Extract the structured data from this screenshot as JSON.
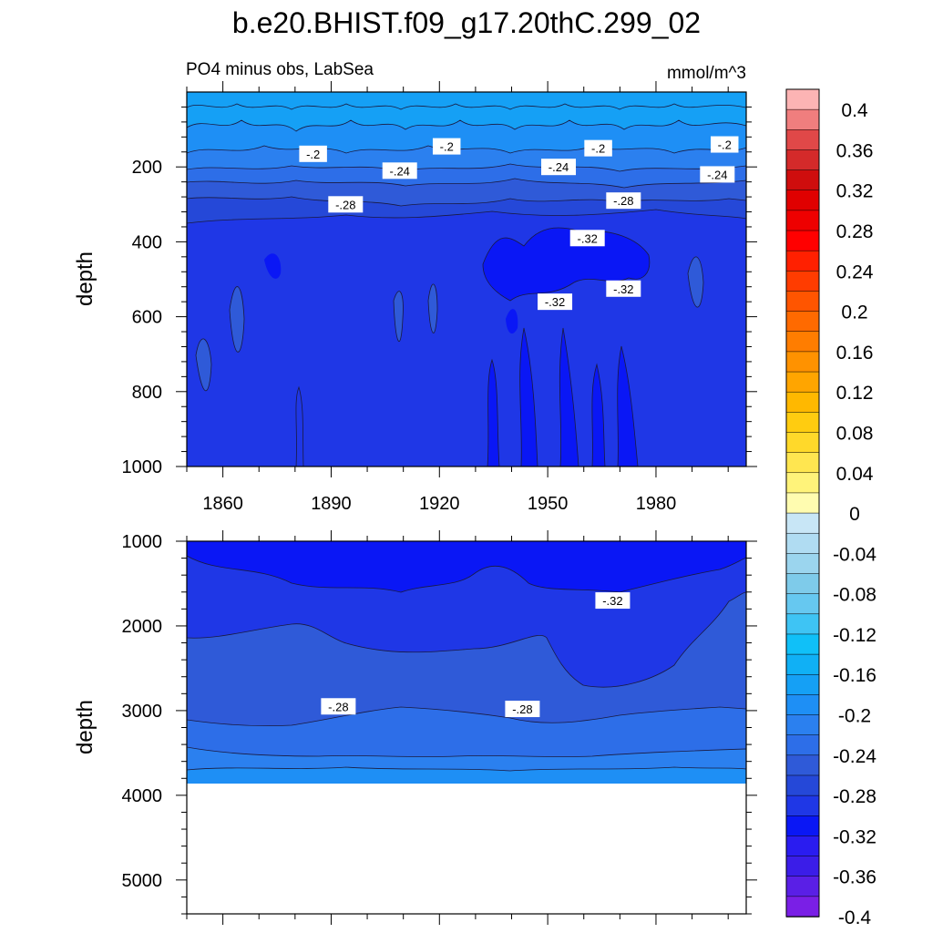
{
  "figure": {
    "title": "b.e20.BHIST.f09_g17.20thC.299_02",
    "subtitle_left": "PO4 minus obs, LabSea",
    "subtitle_right": "mmol/m^3"
  },
  "colors": {
    "c_m040": "#7a1fe6",
    "c_m038": "#5a1fe6",
    "c_m036": "#3b1de8",
    "c_m034": "#2a1cf0",
    "c_m032": "#0a17f5",
    "c_m030": "#1f37e6",
    "c_m028": "#2548d8",
    "c_m026": "#2f5ad8",
    "c_m024": "#2d6ee8",
    "c_m022": "#2b80ef",
    "c_m020": "#1e8ff5",
    "c_m018": "#15a0f5",
    "c_m016": "#10b0f5",
    "c_m014": "#10c0f8",
    "c_m012": "#3ec4f4",
    "c_m010": "#66c8f0",
    "c_m008": "#7ecbea",
    "c_m006": "#9bd5ee",
    "c_m004": "#b0dcf2",
    "c_m002": "#c8e6f6",
    "c_p002": "#fffcb0",
    "c_p004": "#fff37a",
    "c_p006": "#ffe650",
    "c_p008": "#ffd92a",
    "c_p010": "#ffcc10",
    "c_p012": "#ffb800",
    "c_p014": "#ffa500",
    "c_p016": "#ff9200",
    "c_p018": "#ff7d00",
    "c_p020": "#ff6a00",
    "c_p022": "#ff5500",
    "c_p024": "#ff3c00",
    "c_p026": "#ff2000",
    "c_p028": "#ff0000",
    "c_p030": "#ee0000",
    "c_p032": "#e00000",
    "c_p034": "#cf0d0d",
    "c_p036": "#d42a2a",
    "c_p038": "#e04848",
    "c_p040": "#f07e7e",
    "c_p042": "#fcb4b4",
    "line": "#1a1a40"
  },
  "chart_data": [
    {
      "type": "heatmap",
      "title": "",
      "xlabel": "",
      "ylabel": "depth",
      "x_range": [
        1850,
        2005
      ],
      "x_ticks": [
        1860,
        1890,
        1920,
        1950,
        1980
      ],
      "y_range": [
        0,
        1000
      ],
      "y_ticks": [
        200,
        400,
        600,
        800,
        1000
      ],
      "y_reversed": true,
      "contour_labels": [
        {
          "text": "-.2",
          "year": 1885,
          "depth": 165
        },
        {
          "text": "-.2",
          "year": 1922,
          "depth": 145
        },
        {
          "text": "-.2",
          "year": 1964,
          "depth": 150
        },
        {
          "text": "-.2",
          "year": 1999,
          "depth": 140
        },
        {
          "text": "-.24",
          "year": 1909,
          "depth": 210
        },
        {
          "text": "-.24",
          "year": 1953,
          "depth": 200
        },
        {
          "text": "-.24",
          "year": 1997,
          "depth": 220
        },
        {
          "text": "-.28",
          "year": 1894,
          "depth": 300
        },
        {
          "text": "-.28",
          "year": 1971,
          "depth": 290
        },
        {
          "text": "-.32",
          "year": 1961,
          "depth": 390
        },
        {
          "text": "-.32",
          "year": 1952,
          "depth": 560
        },
        {
          "text": "-.32",
          "year": 1971,
          "depth": 525
        }
      ]
    },
    {
      "type": "heatmap",
      "title": "",
      "xlabel": "",
      "ylabel": "depth",
      "x_range": [
        1850,
        2005
      ],
      "y_range": [
        1000,
        5400
      ],
      "y_ticks": [
        1000,
        2000,
        3000,
        4000,
        5000
      ],
      "y_reversed": true,
      "data_max_depth": 3850,
      "contour_labels": [
        {
          "text": "-.32",
          "year": 1968,
          "depth": 1700
        },
        {
          "text": "-.28",
          "year": 1892,
          "depth": 2950
        },
        {
          "text": "-.28",
          "year": 1943,
          "depth": 2980
        }
      ]
    }
  ],
  "colorbar": {
    "labels": [
      "0.4",
      "0.36",
      "0.32",
      "0.28",
      "0.24",
      "0.2",
      "0.16",
      "0.12",
      "0.08",
      "0.04",
      "0",
      "-0.04",
      "-0.08",
      "-0.12",
      "-0.16",
      "-0.2",
      "-0.24",
      "-0.28",
      "-0.32",
      "-0.36",
      "-0.4"
    ]
  }
}
